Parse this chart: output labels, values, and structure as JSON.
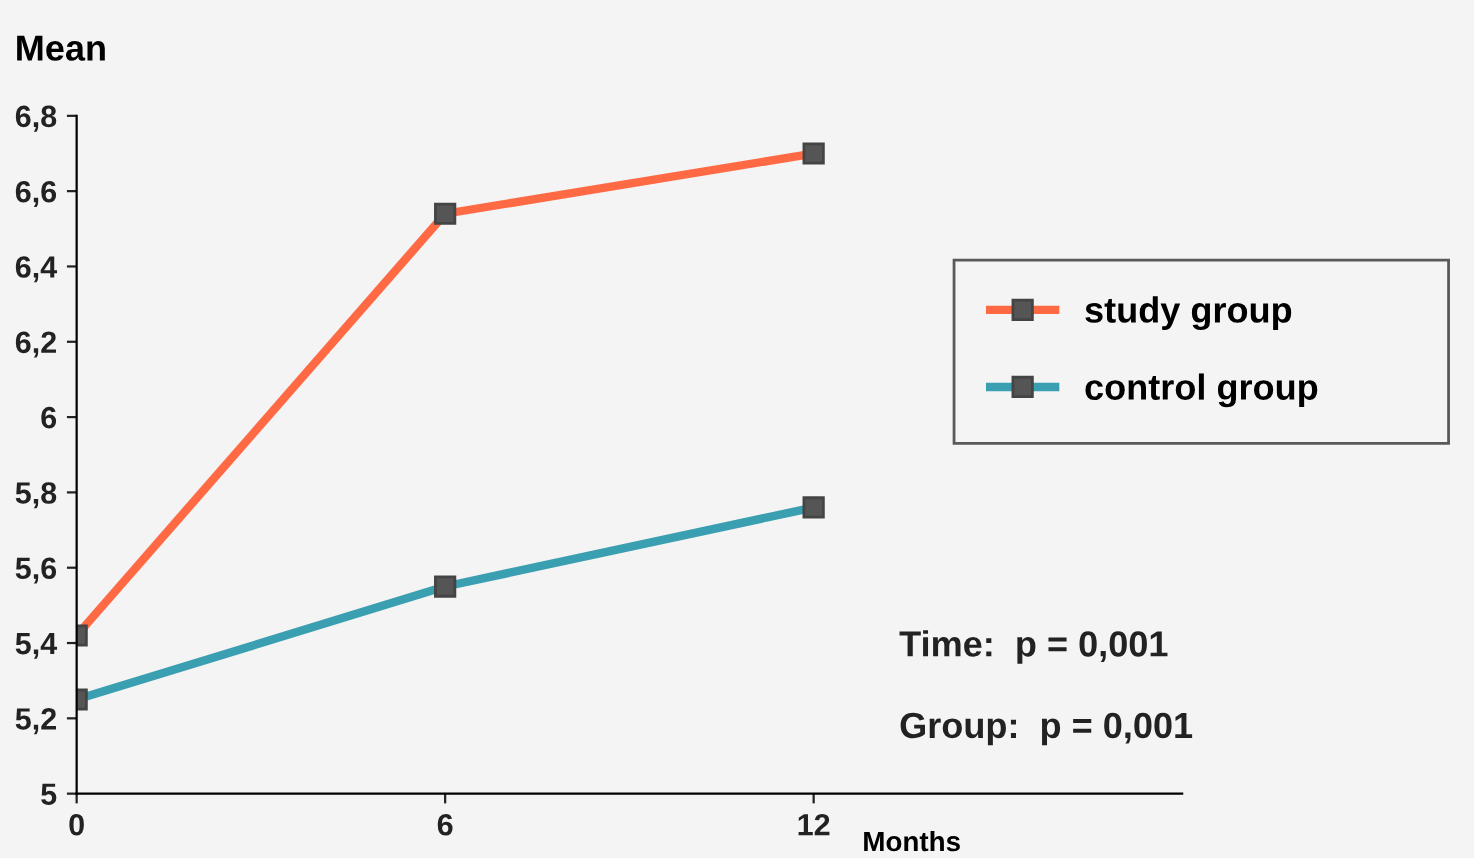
{
  "chart_data": {
    "type": "line",
    "ylabel": "Mean",
    "xlabel": "Months",
    "x": [
      0,
      6,
      12
    ],
    "series": [
      {
        "name": "study group",
        "color": "#ff6a45",
        "values": [
          5.42,
          6.54,
          6.7
        ]
      },
      {
        "name": "control group",
        "color": "#3a9fb0",
        "values": [
          5.25,
          5.55,
          5.76
        ]
      }
    ],
    "xlim": [
      0,
      18
    ],
    "xticks": [
      0,
      6,
      12
    ],
    "ylim": [
      5,
      6.8
    ],
    "yticks": [
      {
        "value": 5,
        "label": "5"
      },
      {
        "value": 5.2,
        "label": "5,2"
      },
      {
        "value": 5.4,
        "label": "5,4"
      },
      {
        "value": 5.6,
        "label": "5,6"
      },
      {
        "value": 5.8,
        "label": "5,8"
      },
      {
        "value": 6,
        "label": "6"
      },
      {
        "value": 6.2,
        "label": "6,2"
      },
      {
        "value": 6.4,
        "label": "6,4"
      },
      {
        "value": 6.6,
        "label": "6,6"
      },
      {
        "value": 6.8,
        "label": "6,8"
      }
    ],
    "annotations": [
      "Time:  p = 0,001",
      "Group:  p = 0,001"
    ],
    "legend": "right",
    "marker": "square",
    "line_style": "solid",
    "grid": false
  }
}
